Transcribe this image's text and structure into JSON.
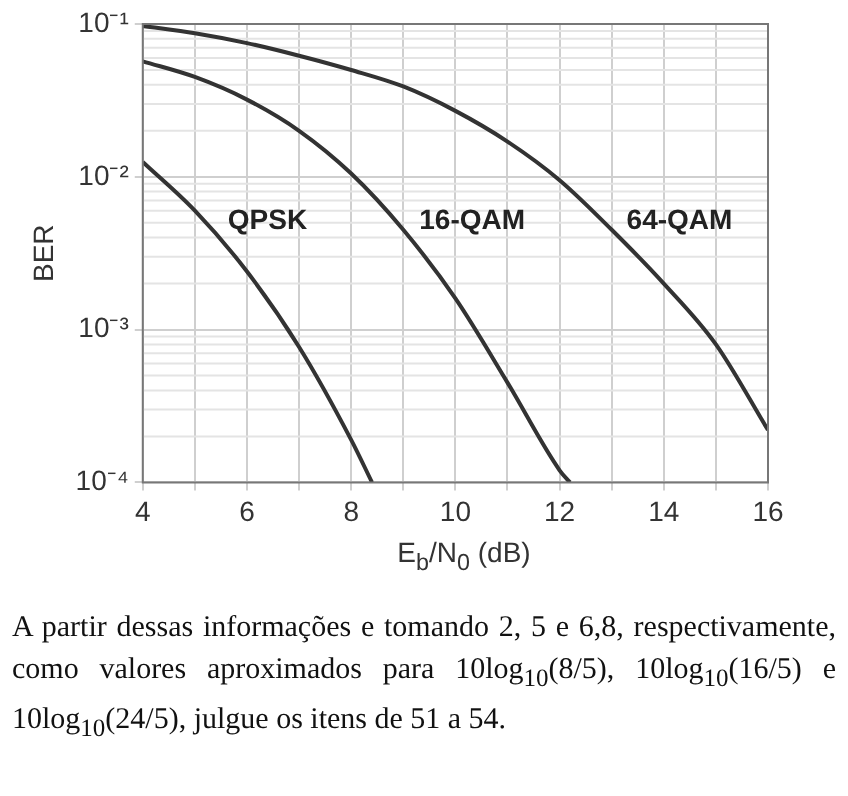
{
  "chart_data": {
    "type": "line",
    "xlabel": "E$_{b}$/N$_{0}$ (dB)",
    "ylabel": "BER",
    "log": "y",
    "grid": true,
    "legend": false,
    "marker": "none",
    "line_style": "solid",
    "xlim": [
      4,
      16
    ],
    "xticks": [
      4,
      {
        "value": 5,
        "label": null
      },
      6,
      {
        "value": 7,
        "label": null
      },
      8,
      {
        "value": 9,
        "label": null
      },
      10,
      {
        "value": 11,
        "label": null
      },
      12,
      {
        "value": 13,
        "label": null
      },
      14,
      {
        "value": 15,
        "label": null
      },
      16
    ],
    "ylim": [
      0.0001,
      0.1
    ],
    "yticks": [
      {
        "value": 0.0001,
        "label": "10⁻⁴"
      },
      {
        "value": 0.001,
        "label": "10⁻³"
      },
      {
        "value": 0.01,
        "label": "10⁻²"
      },
      {
        "value": 0.1,
        "label": "10⁻¹"
      }
    ],
    "series": [
      {
        "name": "QPSK",
        "color": "#333333",
        "x": [
          4,
          5,
          6,
          7,
          8,
          8.4
        ],
        "values": [
          0.0125,
          0.006,
          0.0024,
          0.00077,
          0.00019,
          0.0001
        ]
      },
      {
        "name": "16-QAM",
        "color": "#333333",
        "x": [
          4,
          5,
          6,
          7,
          8,
          9,
          10,
          11,
          12,
          12.2
        ],
        "values": [
          0.057,
          0.045,
          0.032,
          0.02,
          0.0105,
          0.0045,
          0.0016,
          0.00045,
          0.00012,
          0.0001
        ]
      },
      {
        "name": "64-QAM",
        "color": "#333333",
        "x": [
          4,
          5,
          6,
          7,
          8,
          9,
          10,
          11,
          12,
          13,
          14,
          15,
          16
        ],
        "values": [
          0.097,
          0.087,
          0.075,
          0.062,
          0.05,
          0.039,
          0.027,
          0.017,
          0.0095,
          0.0045,
          0.002,
          0.0008,
          0.00022
        ]
      }
    ],
    "annotations": [
      "A partir dessas informações e tomando 2, 5 e 6,8, respectivamente, como valores aproximados para 10log$_{10}$(8/5), 10log$_{10}$(16/5) e 10log$_{10}$(24/5), julgue os itens de 51 a 54."
    ]
  }
}
